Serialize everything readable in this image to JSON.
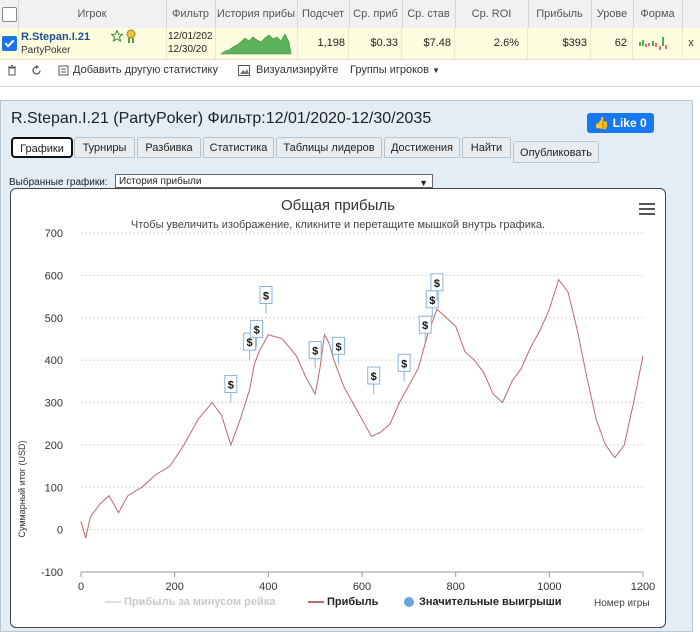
{
  "grid": {
    "columns": [
      "",
      "Игрок",
      "Фильтр",
      "История прибы",
      "Подсчет",
      "Ср. приб",
      "Ср. став",
      "Ср. ROI",
      "Прибыль",
      "Урове",
      "Форма",
      ""
    ],
    "row": {
      "player": "R.Stepan.I.21",
      "site": "PartyPoker",
      "filter_line1": "12/01/202",
      "filter_line2": "12/30/20",
      "count": "1,198",
      "avg_profit": "$0.33",
      "avg_stake": "$7.48",
      "avg_roi": "2.6%",
      "profit": "$393",
      "level": "62",
      "remove": "x"
    }
  },
  "toolbar": {
    "add_stats": "Добавить другую статистику",
    "visualize": "Визуализируйте",
    "groups": "Группы игроков"
  },
  "panel": {
    "title": "R.Stepan.I.21 (PartyPoker) Фильтр:12/01/2020-12/30/2035",
    "like": "Like 0",
    "close": "×",
    "tabs": [
      "Графики",
      "Турниры",
      "Разбивка",
      "Статистика",
      "Таблицы лидеров",
      "Достижения",
      "Найти",
      "Опубликовать"
    ],
    "selected_charts_label": "Выбранные графики:",
    "selected_chart": "История прибыли"
  },
  "chart_data": {
    "type": "line",
    "title": "Общая прибыль",
    "subtitle": "Чтобы увеличить изображение, кликните и перетащите мышкой внутрь графика.",
    "ylabel": "Суммарный итог (USD)",
    "xlabel": "Номер игры",
    "xlim": [
      0,
      1200
    ],
    "ylim": [
      -100,
      700
    ],
    "x_ticks": [
      0,
      200,
      400,
      600,
      800,
      1000,
      1200
    ],
    "y_ticks": [
      -100,
      0,
      100,
      200,
      300,
      400,
      500,
      600,
      700
    ],
    "series": [
      {
        "name": "Прибыль",
        "color": "#b96b6b",
        "points": [
          [
            0,
            20
          ],
          [
            10,
            -20
          ],
          [
            20,
            30
          ],
          [
            40,
            60
          ],
          [
            60,
            80
          ],
          [
            80,
            40
          ],
          [
            100,
            80
          ],
          [
            130,
            100
          ],
          [
            160,
            130
          ],
          [
            190,
            150
          ],
          [
            220,
            200
          ],
          [
            250,
            260
          ],
          [
            280,
            300
          ],
          [
            300,
            270
          ],
          [
            320,
            200
          ],
          [
            340,
            260
          ],
          [
            360,
            330
          ],
          [
            370,
            390
          ],
          [
            380,
            420
          ],
          [
            400,
            460
          ],
          [
            430,
            450
          ],
          [
            460,
            410
          ],
          [
            480,
            360
          ],
          [
            500,
            320
          ],
          [
            510,
            380
          ],
          [
            520,
            460
          ],
          [
            530,
            440
          ],
          [
            540,
            400
          ],
          [
            560,
            340
          ],
          [
            580,
            300
          ],
          [
            600,
            260
          ],
          [
            620,
            220
          ],
          [
            640,
            230
          ],
          [
            660,
            250
          ],
          [
            680,
            300
          ],
          [
            700,
            340
          ],
          [
            720,
            380
          ],
          [
            740,
            460
          ],
          [
            760,
            520
          ],
          [
            780,
            500
          ],
          [
            800,
            480
          ],
          [
            820,
            420
          ],
          [
            840,
            400
          ],
          [
            860,
            370
          ],
          [
            880,
            320
          ],
          [
            900,
            300
          ],
          [
            920,
            350
          ],
          [
            940,
            380
          ],
          [
            960,
            430
          ],
          [
            980,
            470
          ],
          [
            1000,
            520
          ],
          [
            1020,
            590
          ],
          [
            1040,
            560
          ],
          [
            1060,
            470
          ],
          [
            1080,
            360
          ],
          [
            1100,
            260
          ],
          [
            1120,
            200
          ],
          [
            1140,
            170
          ],
          [
            1160,
            200
          ],
          [
            1180,
            300
          ],
          [
            1200,
            410
          ]
        ]
      }
    ],
    "big_wins": [
      [
        320,
        300
      ],
      [
        360,
        400
      ],
      [
        375,
        430
      ],
      [
        395,
        510
      ],
      [
        500,
        380
      ],
      [
        550,
        390
      ],
      [
        625,
        320
      ],
      [
        690,
        350
      ],
      [
        735,
        440
      ],
      [
        750,
        500
      ],
      [
        760,
        540
      ]
    ],
    "legend": [
      "Прибыль за минусом рейка",
      "Прибыль",
      "Значительные выигрыши"
    ]
  }
}
